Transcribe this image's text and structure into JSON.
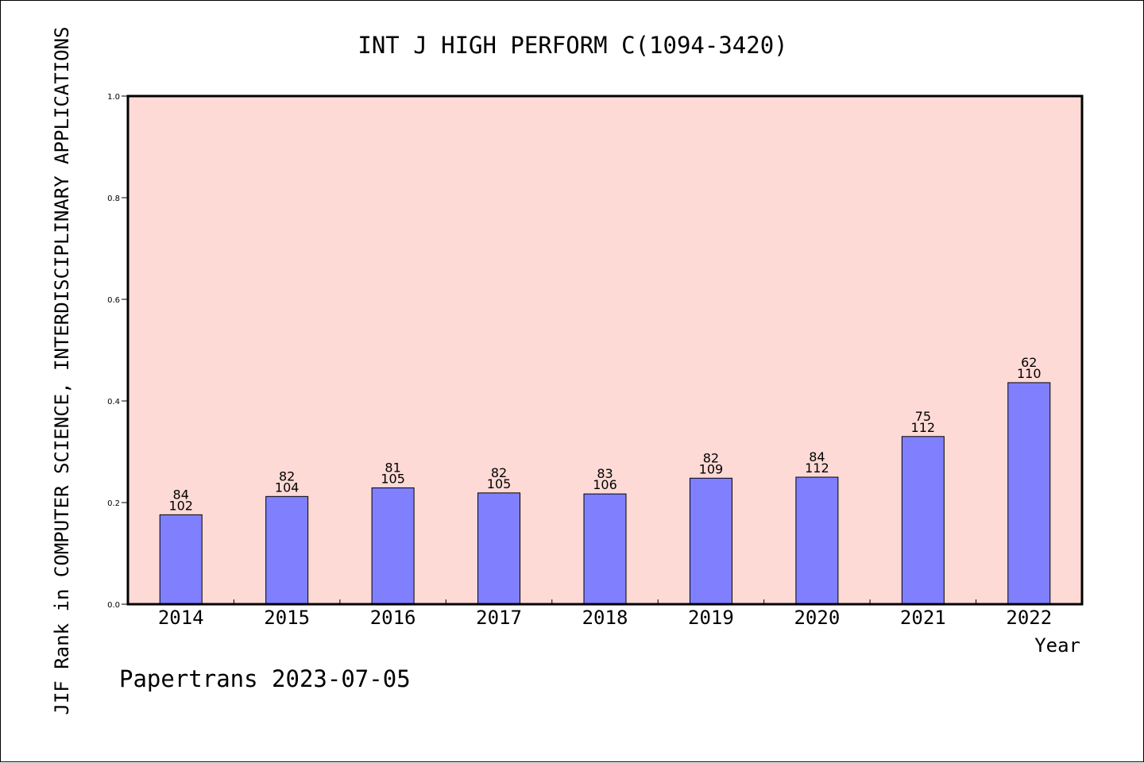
{
  "chart_data": {
    "type": "bar",
    "title": "INT J HIGH PERFORM C(1094-3420)",
    "xlabel": "Year",
    "ylabel": "JIF Rank in COMPUTER SCIENCE, INTERDISCIPLINARY APPLICATIONS",
    "ylim": [
      0,
      1.0
    ],
    "yticks": [
      "0.0",
      "0.2",
      "0.4",
      "0.6",
      "0.8",
      "1.0"
    ],
    "categories": [
      "2014",
      "2015",
      "2016",
      "2017",
      "2018",
      "2019",
      "2020",
      "2021",
      "2022"
    ],
    "values": [
      0.176,
      0.212,
      0.229,
      0.219,
      0.217,
      0.248,
      0.25,
      0.33,
      0.436
    ],
    "rank": [
      "84",
      "82",
      "81",
      "82",
      "83",
      "82",
      "84",
      "75",
      "62"
    ],
    "total": [
      "102",
      "104",
      "105",
      "105",
      "106",
      "109",
      "112",
      "112",
      "110"
    ],
    "grid": false,
    "colors": {
      "plot_background": "#FDDAD6",
      "bar_fill": "#8080FF",
      "bar_stroke": "#000000"
    }
  },
  "footer": {
    "text": "Papertrans 2023-07-05"
  }
}
